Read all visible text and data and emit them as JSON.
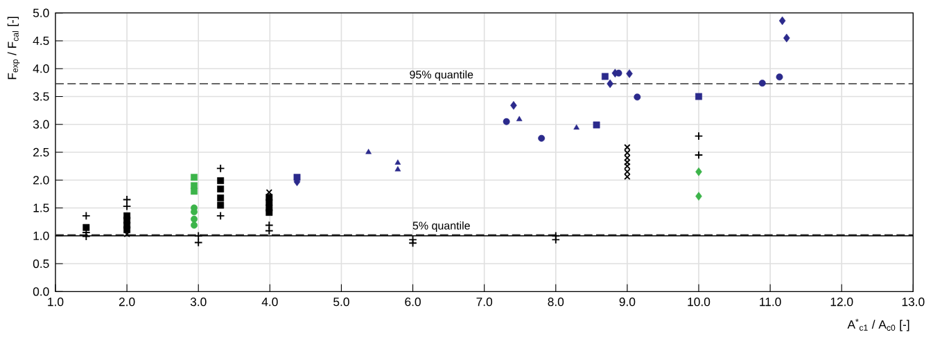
{
  "chart_data": {
    "type": "scatter",
    "xlabel": "A$^{*}$$_{c1}$ / A$_{c0}$  [-]",
    "ylabel": "F$_{exp}$ / F$_{cal}$ [-]",
    "xlim": [
      1.0,
      13.0
    ],
    "ylim": [
      0.0,
      5.0
    ],
    "xticks": [
      {
        "value": 1,
        "label": "1.0"
      },
      {
        "value": 2,
        "label": "2.0"
      },
      {
        "value": 3,
        "label": "3.0"
      },
      {
        "value": 4,
        "label": "4.0"
      },
      {
        "value": 5,
        "label": "5.0"
      },
      {
        "value": 6,
        "label": "6.0"
      },
      {
        "value": 7,
        "label": "7.0"
      },
      {
        "value": 8,
        "label": "8.0"
      },
      {
        "value": 9,
        "label": "9.0"
      },
      {
        "value": 10,
        "label": "10.0"
      },
      {
        "value": 11,
        "label": "11.0"
      },
      {
        "value": 12,
        "label": "12.0"
      },
      {
        "value": 13,
        "label": "13.0"
      }
    ],
    "yticks": [
      {
        "value": 0,
        "label": "0.0"
      },
      0.5,
      {
        "value": 1,
        "label": "1.0"
      },
      1.5,
      {
        "value": 2,
        "label": "2.0"
      },
      2.5,
      {
        "value": 3,
        "label": "3.0"
      },
      3.5,
      {
        "value": 4,
        "label": "4.0"
      },
      4.5,
      {
        "value": 5,
        "label": "5.0"
      }
    ],
    "grid": true,
    "ref_lines": [
      {
        "axis": "y",
        "value": 3.73,
        "label": "95% quantile",
        "line_style": "dashed",
        "color": "#333333"
      },
      {
        "axis": "y",
        "value": 1.02,
        "label": "5% quantile",
        "line_style": "dashed",
        "color": "#333333"
      },
      {
        "axis": "y",
        "value": 1.0,
        "line_style": "solid",
        "color": "#000000"
      }
    ],
    "series": [
      {
        "marker": "cross",
        "color": "#000000",
        "x": [
          1.43,
          1.43,
          2,
          2,
          3.31,
          3.31,
          10,
          10
        ],
        "values": [
          1.36,
          1.06,
          1.65,
          1.53,
          2.21,
          1.36,
          2.79,
          2.45
        ]
      },
      {
        "marker": "square",
        "color": "#000000",
        "x": [
          1.43,
          2,
          2,
          2,
          2,
          3.31,
          3.31,
          3.31,
          3.31,
          3.99,
          3.99,
          3.99,
          3.99
        ],
        "values": [
          1.15,
          1.36,
          1.28,
          1.19,
          1.11,
          1.99,
          1.84,
          1.68,
          1.55,
          1.69,
          1.6,
          1.5,
          1.42
        ]
      },
      {
        "marker": "x",
        "color": "#000000",
        "x": [
          2,
          3.99,
          9,
          9,
          9,
          9,
          9,
          9,
          9
        ],
        "values": [
          1.03,
          1.78,
          2.59,
          2.49,
          2.4,
          2.32,
          2.25,
          2.15,
          2.06
        ]
      },
      {
        "marker": "cross",
        "color": "#000000",
        "x": [
          1.43,
          3,
          3,
          3.99,
          3.99,
          6,
          6,
          8,
          8
        ],
        "values": [
          0.99,
          1.0,
          0.88,
          1.19,
          1.09,
          0.93,
          0.87,
          1.0,
          0.93
        ]
      },
      {
        "marker": "square",
        "color": "#3cb44a",
        "x": [
          2.94,
          2.94,
          2.94
        ],
        "values": [
          2.05,
          1.9,
          1.8
        ]
      },
      {
        "marker": "circle",
        "color": "#3cb44a",
        "x": [
          2.94,
          2.94,
          2.94,
          2.94
        ],
        "values": [
          1.5,
          1.43,
          1.3,
          1.19
        ]
      },
      {
        "marker": "diamond",
        "color": "#3cb44a",
        "x": [
          10,
          10
        ],
        "values": [
          2.15,
          1.71
        ]
      },
      {
        "marker": "square",
        "color": "#2b2a8c",
        "x": [
          4.38,
          8.57,
          8.69,
          10.0
        ],
        "values": [
          2.05,
          2.99,
          3.86,
          3.5
        ]
      },
      {
        "marker": "diamond",
        "color": "#2b2a8c",
        "x": [
          4.38,
          7.41,
          8.76,
          8.83,
          9.03,
          11.17,
          11.23
        ],
        "values": [
          1.97,
          3.34,
          3.73,
          3.92,
          3.91,
          4.86,
          4.55
        ]
      },
      {
        "marker": "triangle",
        "color": "#2b2a8c",
        "x": [
          5.38,
          5.79,
          5.79,
          7.49,
          8.29
        ],
        "values": [
          2.5,
          2.31,
          2.19,
          3.09,
          2.94
        ]
      },
      {
        "marker": "circle",
        "color": "#2b2a8c",
        "x": [
          7.31,
          7.8,
          8.88,
          9.14,
          10.89,
          11.13
        ],
        "values": [
          3.05,
          2.75,
          3.92,
          3.49,
          3.74,
          3.85
        ]
      }
    ]
  }
}
